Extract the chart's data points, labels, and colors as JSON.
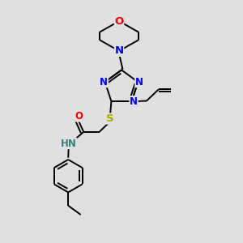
{
  "background_color": "#e0e0e0",
  "atom_colors": {
    "N": "#0000ee",
    "O": "#ee0000",
    "S": "#aaaa00",
    "C": "#000000",
    "H": "#3a8080"
  },
  "bond_color": "#000000",
  "font_size_atom": 8.5,
  "figsize": [
    3.0,
    3.0
  ],
  "dpi": 100,
  "xlim": [
    0,
    10
  ],
  "ylim": [
    0,
    10
  ]
}
